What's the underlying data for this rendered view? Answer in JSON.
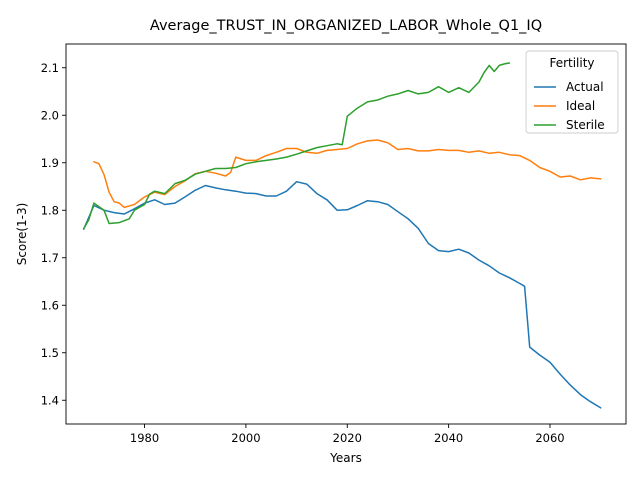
{
  "chart_data": {
    "type": "line",
    "title": "Average_TRUST_IN_ORGANIZED_LABOR_Whole_Q1_IQ",
    "xlabel": "Years",
    "ylabel": "Score(1-3)",
    "xlim": [
      1964.5,
      2075.0
    ],
    "ylim": [
      1.35,
      2.15
    ],
    "xticks": [
      1980,
      2000,
      2020,
      2040,
      2060
    ],
    "yticks": [
      1.4,
      1.5,
      1.6,
      1.7,
      1.8,
      1.9,
      2.0,
      2.1
    ],
    "ytick_labels": [
      "1.4",
      "1.5",
      "1.6",
      "1.7",
      "1.8",
      "1.9",
      "2.0",
      "2.1"
    ],
    "grid": false,
    "legend": {
      "title": "Fertility",
      "placement": "top-right"
    },
    "colors": {
      "Actual": "#1f77b4",
      "Ideal": "#ff7f0e",
      "Sterile": "#2ca02c"
    },
    "series": [
      {
        "name": "Actual",
        "x": [
          1968,
          1970,
          1972,
          1974,
          1976,
          1978,
          1980,
          1982,
          1984,
          1986,
          1988,
          1990,
          1992,
          1994,
          1996,
          1998,
          2000,
          2002,
          2004,
          2006,
          2008,
          2010,
          2012,
          2014,
          2016,
          2018,
          2020,
          2022,
          2024,
          2026,
          2028,
          2030,
          2032,
          2034,
          2036,
          2038,
          2040,
          2042,
          2044,
          2046,
          2048,
          2050,
          2052,
          2054,
          2055,
          2056,
          2058,
          2060,
          2062,
          2064,
          2066,
          2068,
          2070
        ],
        "y": [
          1.76,
          1.81,
          1.8,
          1.795,
          1.792,
          1.803,
          1.815,
          1.822,
          1.812,
          1.815,
          1.828,
          1.842,
          1.852,
          1.847,
          1.843,
          1.84,
          1.836,
          1.835,
          1.83,
          1.83,
          1.84,
          1.86,
          1.855,
          1.835,
          1.822,
          1.8,
          1.801,
          1.81,
          1.82,
          1.818,
          1.812,
          1.797,
          1.782,
          1.762,
          1.73,
          1.715,
          1.713,
          1.718,
          1.71,
          1.695,
          1.683,
          1.668,
          1.658,
          1.646,
          1.64,
          1.512,
          1.495,
          1.48,
          1.455,
          1.432,
          1.412,
          1.397,
          1.384
        ]
      },
      {
        "name": "Ideal",
        "x": [
          1970,
          1971,
          1972,
          1973,
          1974,
          1975,
          1976,
          1978,
          1980,
          1982,
          1984,
          1986,
          1988,
          1990,
          1992,
          1994,
          1996,
          1997,
          1998,
          2000,
          2002,
          2004,
          2006,
          2008,
          2010,
          2012,
          2014,
          2016,
          2018,
          2020,
          2022,
          2024,
          2026,
          2028,
          2030,
          2032,
          2034,
          2036,
          2038,
          2040,
          2042,
          2044,
          2046,
          2048,
          2050,
          2052,
          2054,
          2056,
          2058,
          2060,
          2062,
          2064,
          2066,
          2068,
          2070
        ],
        "y": [
          1.902,
          1.898,
          1.875,
          1.838,
          1.818,
          1.815,
          1.806,
          1.812,
          1.828,
          1.838,
          1.833,
          1.85,
          1.862,
          1.877,
          1.882,
          1.878,
          1.872,
          1.88,
          1.912,
          1.905,
          1.905,
          1.915,
          1.922,
          1.93,
          1.93,
          1.922,
          1.92,
          1.926,
          1.928,
          1.93,
          1.94,
          1.946,
          1.948,
          1.942,
          1.928,
          1.93,
          1.925,
          1.925,
          1.928,
          1.926,
          1.926,
          1.922,
          1.925,
          1.92,
          1.922,
          1.917,
          1.915,
          1.905,
          1.89,
          1.882,
          1.87,
          1.872,
          1.864,
          1.868,
          1.866
        ]
      },
      {
        "name": "Sterile",
        "x": [
          1968,
          1969,
          1970,
          1972,
          1973,
          1975,
          1977,
          1978,
          1980,
          1981,
          1982,
          1984,
          1986,
          1988,
          1990,
          1992,
          1994,
          1996,
          1998,
          2000,
          2002,
          2004,
          2006,
          2008,
          2010,
          2012,
          2014,
          2016,
          2018,
          2019,
          2020,
          2022,
          2024,
          2026,
          2028,
          2030,
          2032,
          2034,
          2036,
          2038,
          2040,
          2042,
          2044,
          2046,
          2047,
          2048,
          2049,
          2050,
          2051,
          2052
        ],
        "y": [
          1.761,
          1.78,
          1.815,
          1.8,
          1.772,
          1.774,
          1.782,
          1.8,
          1.812,
          1.834,
          1.84,
          1.835,
          1.856,
          1.863,
          1.876,
          1.882,
          1.888,
          1.888,
          1.89,
          1.898,
          1.902,
          1.905,
          1.908,
          1.912,
          1.918,
          1.925,
          1.932,
          1.936,
          1.94,
          1.938,
          1.998,
          2.015,
          2.028,
          2.032,
          2.04,
          2.045,
          2.052,
          2.045,
          2.048,
          2.06,
          2.048,
          2.058,
          2.048,
          2.07,
          2.09,
          2.105,
          2.092,
          2.105,
          2.108,
          2.11
        ]
      }
    ]
  }
}
